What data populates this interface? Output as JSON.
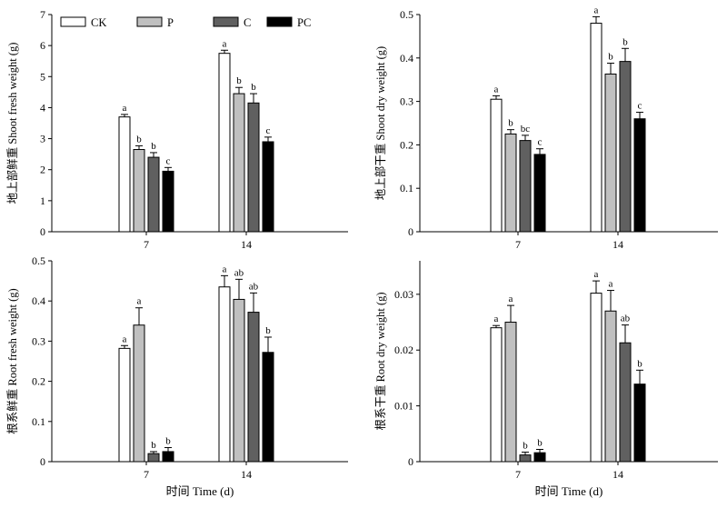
{
  "chart_data": [
    {
      "type": "bar",
      "categories": [
        "7",
        "14"
      ],
      "xlabel": "",
      "ylabel": "地上部鲜重 Shoot fresh weight (g)",
      "ylim": [
        0,
        7
      ],
      "yticks": [
        0,
        1,
        2,
        3,
        4,
        5,
        6,
        7
      ],
      "series": [
        {
          "name": "CK",
          "values": [
            3.7,
            5.75
          ],
          "errors": [
            0.08,
            0.1
          ],
          "letters": [
            "a",
            "a"
          ]
        },
        {
          "name": "P",
          "values": [
            2.65,
            4.45
          ],
          "errors": [
            0.12,
            0.2
          ],
          "letters": [
            "b",
            "b"
          ]
        },
        {
          "name": "C",
          "values": [
            2.4,
            4.15
          ],
          "errors": [
            0.15,
            0.3
          ],
          "letters": [
            "b",
            "b"
          ]
        },
        {
          "name": "PC",
          "values": [
            1.95,
            2.9
          ],
          "errors": [
            0.12,
            0.15
          ],
          "letters": [
            "c",
            "c"
          ]
        }
      ]
    },
    {
      "type": "bar",
      "categories": [
        "7",
        "14"
      ],
      "xlabel": "",
      "ylabel": "地上部干重 Shoot dry weight (g)",
      "ylim": [
        0,
        0.5
      ],
      "yticks": [
        "0",
        "0.1",
        "0.2",
        "0.3",
        "0.4",
        "0.5"
      ],
      "series": [
        {
          "name": "CK",
          "values": [
            0.305,
            0.48
          ],
          "errors": [
            0.008,
            0.015
          ],
          "letters": [
            "a",
            "a"
          ]
        },
        {
          "name": "P",
          "values": [
            0.225,
            0.363
          ],
          "errors": [
            0.01,
            0.025
          ],
          "letters": [
            "b",
            "b"
          ]
        },
        {
          "name": "C",
          "values": [
            0.21,
            0.392
          ],
          "errors": [
            0.012,
            0.03
          ],
          "letters": [
            "bc",
            "b"
          ]
        },
        {
          "name": "PC",
          "values": [
            0.178,
            0.26
          ],
          "errors": [
            0.013,
            0.015
          ],
          "letters": [
            "c",
            "c"
          ]
        }
      ]
    },
    {
      "type": "bar",
      "categories": [
        "7",
        "14"
      ],
      "xlabel": "时间 Time (d)",
      "ylabel": "根系鲜重 Root fresh weight (g)",
      "ylim": [
        0,
        0.5
      ],
      "yticks": [
        "0",
        "0.1",
        "0.2",
        "0.3",
        "0.4",
        "0.5"
      ],
      "series": [
        {
          "name": "CK",
          "values": [
            0.282,
            0.435
          ],
          "errors": [
            0.007,
            0.028
          ],
          "letters": [
            "a",
            "a"
          ]
        },
        {
          "name": "P",
          "values": [
            0.34,
            0.404
          ],
          "errors": [
            0.043,
            0.05
          ],
          "letters": [
            "a",
            "ab"
          ]
        },
        {
          "name": "C",
          "values": [
            0.02,
            0.372
          ],
          "errors": [
            0.005,
            0.048
          ],
          "letters": [
            "b",
            "ab"
          ]
        },
        {
          "name": "PC",
          "values": [
            0.025,
            0.272
          ],
          "errors": [
            0.01,
            0.038
          ],
          "letters": [
            "b",
            "b"
          ]
        }
      ]
    },
    {
      "type": "bar",
      "categories": [
        "7",
        "14"
      ],
      "xlabel": "时间 Time (d)",
      "ylabel": "根系干重 Root dry weight (g)",
      "ylim": [
        0,
        0.036
      ],
      "yticks": [
        "0",
        "0.01",
        "0.02",
        "0.03"
      ],
      "series": [
        {
          "name": "CK",
          "values": [
            0.024,
            0.0302
          ],
          "errors": [
            0.0004,
            0.0022
          ],
          "letters": [
            "a",
            "a"
          ]
        },
        {
          "name": "P",
          "values": [
            0.025,
            0.027
          ],
          "errors": [
            0.003,
            0.0037
          ],
          "letters": [
            "a",
            "a"
          ]
        },
        {
          "name": "C",
          "values": [
            0.0012,
            0.0213
          ],
          "errors": [
            0.0005,
            0.0032
          ],
          "letters": [
            "b",
            "ab"
          ]
        },
        {
          "name": "PC",
          "values": [
            0.0016,
            0.0139
          ],
          "errors": [
            0.0006,
            0.0025
          ],
          "letters": [
            "b",
            "b"
          ]
        }
      ]
    }
  ],
  "legend": {
    "items": [
      {
        "label": "CK",
        "color": "#ffffff"
      },
      {
        "label": "P",
        "color": "#c0c0c0"
      },
      {
        "label": "C",
        "color": "#606060"
      },
      {
        "label": "PC",
        "color": "#000000"
      }
    ]
  }
}
